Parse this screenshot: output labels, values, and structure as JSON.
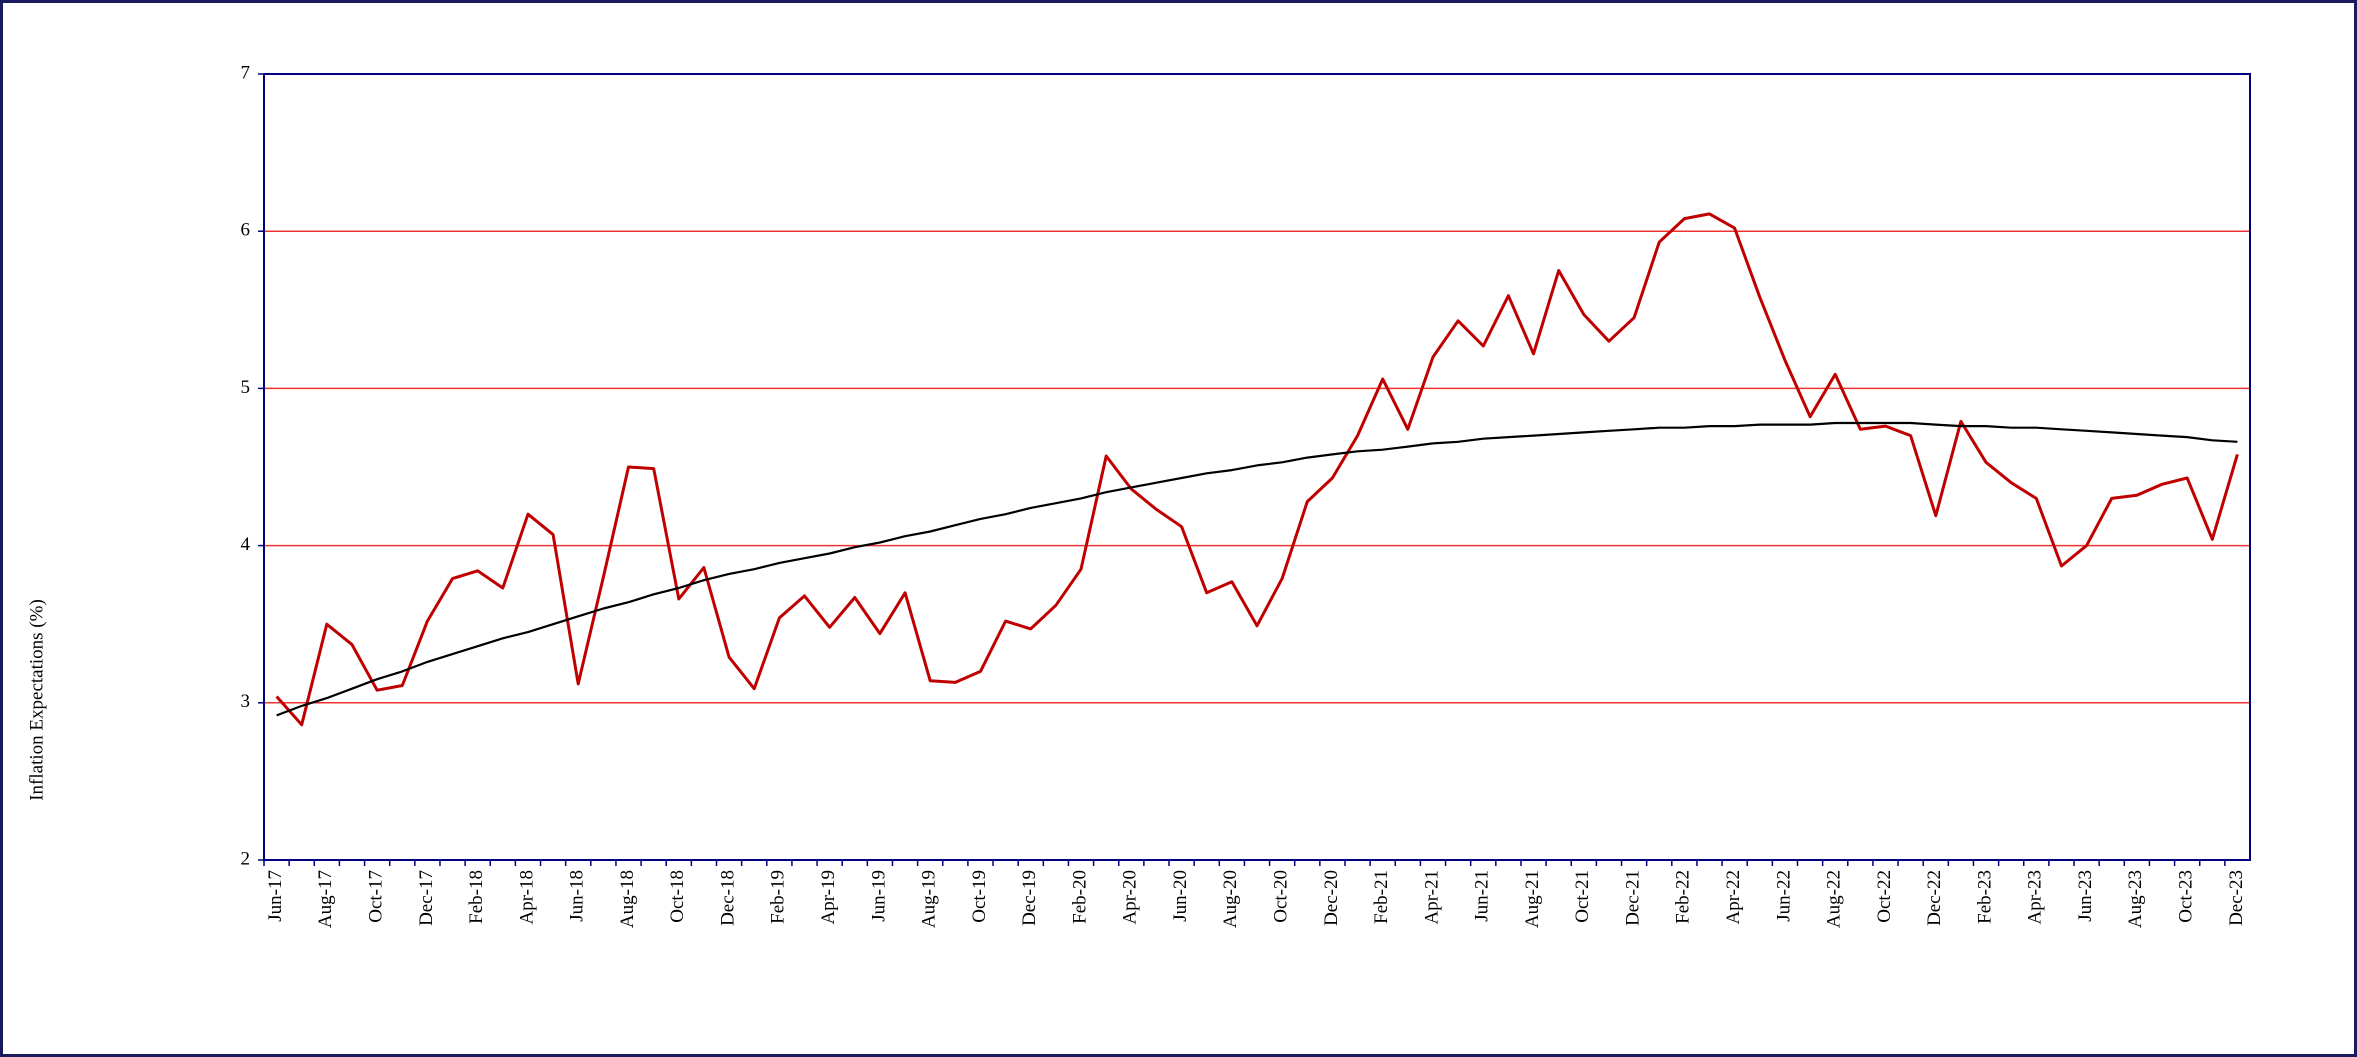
{
  "chart_data": {
    "type": "line",
    "y_label": "Inflation Expectations (%)",
    "categories": [
      "Jun-17",
      null,
      "Aug-17",
      null,
      "Oct-17",
      null,
      "Dec-17",
      null,
      "Feb-18",
      null,
      "Apr-18",
      null,
      "Jun-18",
      null,
      "Aug-18",
      null,
      "Oct-18",
      null,
      "Dec-18",
      null,
      "Feb-19",
      null,
      "Apr-19",
      null,
      "Jun-19",
      null,
      "Aug-19",
      null,
      "Oct-19",
      null,
      "Dec-19",
      null,
      "Feb-20",
      null,
      "Apr-20",
      null,
      "Jun-20",
      null,
      "Aug-20",
      null,
      "Oct-20",
      null,
      "Dec-20",
      null,
      "Feb-21",
      null,
      "Apr-21",
      null,
      "Jun-21",
      null,
      "Aug-21",
      null,
      "Oct-21",
      null,
      "Dec-21",
      null,
      "Feb-22",
      null,
      "Apr-22",
      null,
      "Jun-22",
      null,
      "Aug-22",
      null,
      "Oct-22",
      null,
      "Dec-22",
      null,
      "Feb-23",
      null,
      "Apr-23",
      null,
      "Jun-23",
      null,
      "Aug-23",
      null,
      "Oct-23",
      null,
      "Dec-23"
    ],
    "series": [
      {
        "color": "#c00000",
        "values": [
          3.04,
          2.86,
          3.5,
          3.37,
          3.08,
          3.11,
          3.52,
          3.79,
          3.84,
          3.73,
          4.2,
          4.07,
          3.12,
          3.8,
          4.5,
          4.49,
          3.66,
          3.86,
          3.29,
          3.09,
          3.54,
          3.68,
          3.48,
          3.67,
          3.44,
          3.7,
          3.14,
          3.13,
          3.2,
          3.52,
          3.47,
          3.62,
          3.85,
          4.57,
          4.36,
          4.23,
          4.12,
          3.7,
          3.77,
          3.49,
          3.79,
          4.28,
          4.43,
          4.7,
          5.06,
          4.74,
          5.2,
          5.43,
          5.27,
          5.59,
          5.22,
          5.75,
          5.47,
          5.3,
          5.45,
          5.93,
          6.08,
          6.11,
          6.02,
          5.58,
          5.18,
          4.82,
          5.09,
          4.74,
          4.76,
          4.7,
          4.19,
          4.79,
          4.53,
          4.4,
          4.3,
          3.87,
          4.0,
          4.3,
          4.32,
          4.39,
          4.43,
          4.04,
          4.58
        ]
      },
      {
        "color": "#000000",
        "values": [
          2.92,
          2.98,
          3.03,
          3.09,
          3.15,
          3.2,
          3.26,
          3.31,
          3.36,
          3.41,
          3.45,
          3.5,
          3.55,
          3.6,
          3.64,
          3.69,
          3.73,
          3.78,
          3.82,
          3.85,
          3.89,
          3.92,
          3.95,
          3.99,
          4.02,
          4.06,
          4.09,
          4.13,
          4.17,
          4.2,
          4.24,
          4.27,
          4.3,
          4.34,
          4.37,
          4.4,
          4.43,
          4.46,
          4.48,
          4.51,
          4.53,
          4.56,
          4.58,
          4.6,
          4.61,
          4.63,
          4.65,
          4.66,
          4.68,
          4.69,
          4.7,
          4.71,
          4.72,
          4.73,
          4.74,
          4.75,
          4.75,
          4.76,
          4.76,
          4.77,
          4.77,
          4.77,
          4.78,
          4.78,
          4.78,
          4.78,
          4.77,
          4.76,
          4.76,
          4.75,
          4.75,
          4.74,
          4.73,
          4.72,
          4.71,
          4.7,
          4.69,
          4.67,
          4.66
        ]
      }
    ],
    "ylim": [
      2,
      7
    ],
    "yticks": [
      2,
      3,
      4,
      5,
      6,
      7
    ],
    "grid": true,
    "grid_color": "#ee3333"
  }
}
